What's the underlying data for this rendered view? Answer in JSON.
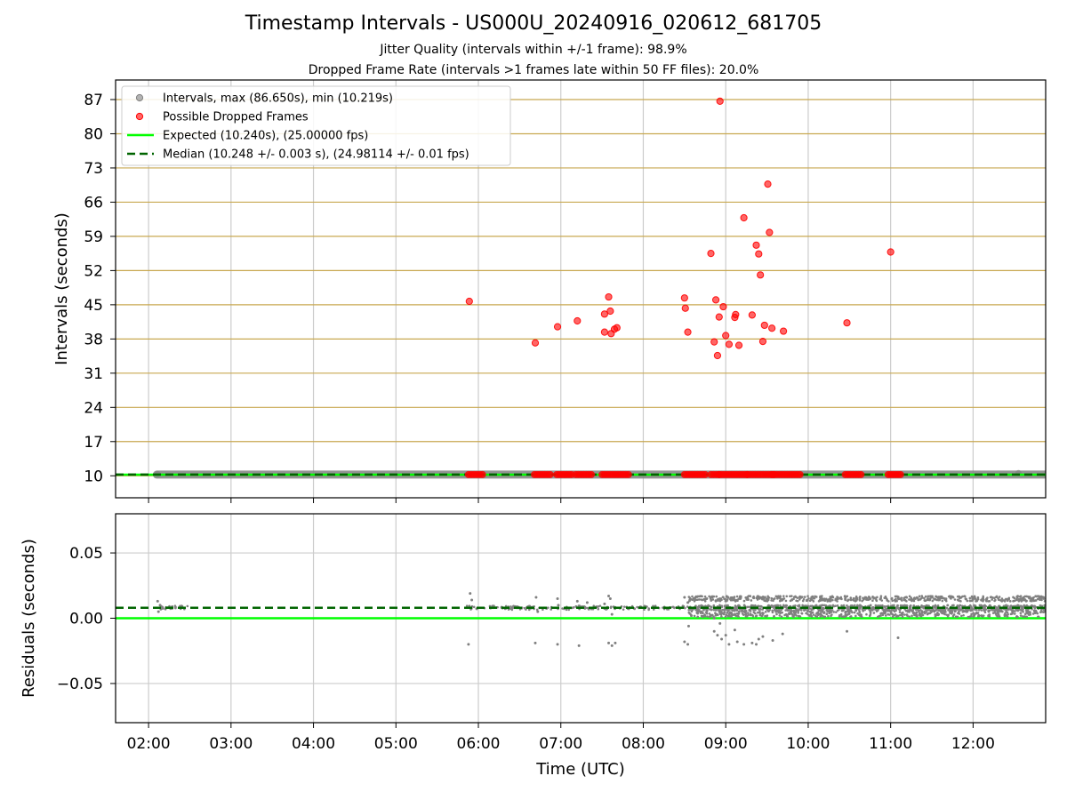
{
  "figure": {
    "title": "Timestamp Intervals - US000U_20240916_020612_681705",
    "subtitle_jitter": "Jitter Quality (intervals within +/-1 frame): 98.9%",
    "subtitle_dropped": "Dropped Frame Rate (intervals >1 frames late within 50 FF files): 20.0%",
    "xlabel": "Time (UTC)"
  },
  "colors": {
    "intervals": "#808080",
    "dropped": "#ff0000",
    "expected": "#00ff00",
    "median": "#006400",
    "top_grid": "#c8a850",
    "grid": "#cccccc"
  },
  "chart_data": [
    {
      "type": "scatter",
      "panel": "intervals",
      "ylabel": "Intervals (seconds)",
      "xlim": [
        1.6,
        12.88
      ],
      "ylim": [
        5.5,
        91
      ],
      "x_unit": "hours UTC",
      "x_ticks": [
        2,
        3,
        4,
        5,
        6,
        7,
        8,
        9,
        10,
        11,
        12
      ],
      "x_ticklabels": [
        "02:00",
        "03:00",
        "04:00",
        "05:00",
        "06:00",
        "07:00",
        "08:00",
        "09:00",
        "10:00",
        "11:00",
        "12:00"
      ],
      "y_ticks": [
        10,
        17,
        24,
        31,
        38,
        45,
        52,
        59,
        66,
        73,
        80,
        87
      ],
      "y_ticklabels": [
        "10",
        "17",
        "24",
        "31",
        "38",
        "45",
        "52",
        "59",
        "66",
        "73",
        "80",
        "87"
      ],
      "grid": true,
      "legend": {
        "placement": "top-left",
        "entries": [
          "Intervals, max (86.650s), min (10.219s)",
          "Possible Dropped Frames",
          "Expected (10.240s), (25.00000 fps)",
          "Median (10.248 +/- 0.003 s), (24.98114 +/- 0.01 fps)"
        ]
      },
      "expected_line": 10.24,
      "median_line": 10.248,
      "series": [
        {
          "name": "Intervals, max (86.650s), min (10.219s)",
          "x_range": [
            2.1,
            12.88
          ],
          "value": 10.25,
          "extra_points": [
            [
              2.11,
              10.35
            ],
            [
              12.55,
              10.55
            ]
          ]
        },
        {
          "name": "Possible Dropped Frames",
          "points": [
            [
              5.89,
              45.7
            ],
            [
              6.69,
              37.2
            ],
            [
              6.96,
              40.5
            ],
            [
              7.2,
              41.7
            ],
            [
              7.53,
              39.4
            ],
            [
              7.53,
              43.1
            ],
            [
              7.58,
              46.6
            ],
            [
              7.6,
              43.7
            ],
            [
              7.61,
              39.1
            ],
            [
              7.65,
              40.0
            ],
            [
              7.68,
              40.3
            ],
            [
              8.5,
              46.4
            ],
            [
              8.51,
              44.3
            ],
            [
              8.54,
              39.4
            ],
            [
              8.82,
              55.5
            ],
            [
              8.86,
              37.4
            ],
            [
              8.88,
              46.0
            ],
            [
              8.9,
              34.6
            ],
            [
              8.92,
              42.5
            ],
            [
              8.93,
              86.65
            ],
            [
              8.97,
              44.6
            ],
            [
              9.0,
              38.7
            ],
            [
              9.04,
              36.9
            ],
            [
              9.11,
              42.4
            ],
            [
              9.12,
              43.0
            ],
            [
              9.16,
              36.7
            ],
            [
              9.22,
              62.8
            ],
            [
              9.32,
              42.9
            ],
            [
              9.37,
              57.2
            ],
            [
              9.4,
              55.4
            ],
            [
              9.42,
              51.1
            ],
            [
              9.45,
              37.5
            ],
            [
              9.47,
              40.8
            ],
            [
              9.51,
              69.7
            ],
            [
              9.53,
              59.8
            ],
            [
              9.56,
              40.2
            ],
            [
              9.7,
              39.6
            ],
            [
              10.47,
              41.3
            ],
            [
              11.0,
              55.8
            ]
          ],
          "baseline_value": 10.25,
          "baseline_clusters": [
            [
              5.88,
              6.05
            ],
            [
              6.68,
              6.87
            ],
            [
              6.95,
              7.13
            ],
            [
              7.18,
              7.37
            ],
            [
              7.5,
              7.82
            ],
            [
              8.5,
              8.75
            ],
            [
              8.82,
              8.92
            ],
            [
              8.92,
              9.26
            ],
            [
              9.26,
              9.58
            ],
            [
              9.56,
              9.9
            ],
            [
              10.45,
              10.64
            ],
            [
              10.97,
              11.12
            ]
          ]
        }
      ]
    },
    {
      "type": "scatter",
      "panel": "residuals",
      "ylabel": "Residuals (seconds)",
      "xlabel": "Time (UTC)",
      "xlim": [
        1.6,
        12.88
      ],
      "ylim": [
        -0.08,
        0.08
      ],
      "y_ticks": [
        0.05,
        0.0,
        -0.05
      ],
      "y_ticklabels": [
        "0.05",
        "0.00",
        "−0.05"
      ],
      "grid": true,
      "expected_line": 0.0,
      "median_line": 0.008,
      "series": [
        {
          "name": "Residuals",
          "baseline": 0.008,
          "dense_range": [
            8.55,
            12.88
          ],
          "outliers": [
            [
              2.11,
              0.013
            ],
            [
              2.12,
              0.005
            ],
            [
              2.14,
              0.01
            ],
            [
              5.9,
              0.019
            ],
            [
              5.92,
              0.014
            ],
            [
              5.88,
              -0.02
            ],
            [
              6.7,
              0.016
            ],
            [
              6.72,
              0.005
            ],
            [
              6.69,
              -0.019
            ],
            [
              6.96,
              0.015
            ],
            [
              6.97,
              0.01
            ],
            [
              6.96,
              -0.02
            ],
            [
              7.2,
              0.013
            ],
            [
              7.22,
              -0.021
            ],
            [
              7.32,
              0.012
            ],
            [
              7.53,
              0.011
            ],
            [
              7.58,
              0.017
            ],
            [
              7.6,
              0.015
            ],
            [
              7.62,
              0.003
            ],
            [
              7.58,
              -0.019
            ],
            [
              7.62,
              -0.021
            ],
            [
              7.66,
              -0.019
            ],
            [
              8.5,
              0.016
            ],
            [
              8.54,
              0.012
            ],
            [
              8.5,
              -0.018
            ],
            [
              8.54,
              -0.02
            ],
            [
              8.55,
              -0.006
            ],
            [
              8.72,
              0.004
            ],
            [
              8.86,
              0.0
            ],
            [
              8.86,
              -0.01
            ],
            [
              8.9,
              -0.013
            ],
            [
              8.93,
              -0.004
            ],
            [
              8.95,
              -0.016
            ],
            [
              9.0,
              -0.013
            ],
            [
              9.04,
              -0.02
            ],
            [
              9.11,
              -0.009
            ],
            [
              9.14,
              -0.018
            ],
            [
              9.22,
              -0.02
            ],
            [
              9.32,
              -0.019
            ],
            [
              9.37,
              -0.02
            ],
            [
              9.4,
              -0.016
            ],
            [
              9.45,
              -0.014
            ],
            [
              9.57,
              -0.017
            ],
            [
              9.69,
              -0.012
            ],
            [
              10.47,
              -0.01
            ],
            [
              11.09,
              -0.015
            ]
          ]
        }
      ]
    }
  ]
}
